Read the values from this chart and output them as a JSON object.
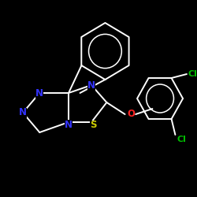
{
  "background_color": "#000000",
  "bond_color": "#ffffff",
  "atom_colors": {
    "N": "#3333ff",
    "S": "#cccc00",
    "O": "#ff2222",
    "Cl": "#00bb00",
    "C": "#ffffff"
  },
  "figsize": [
    2.5,
    2.5
  ],
  "dpi": 100
}
